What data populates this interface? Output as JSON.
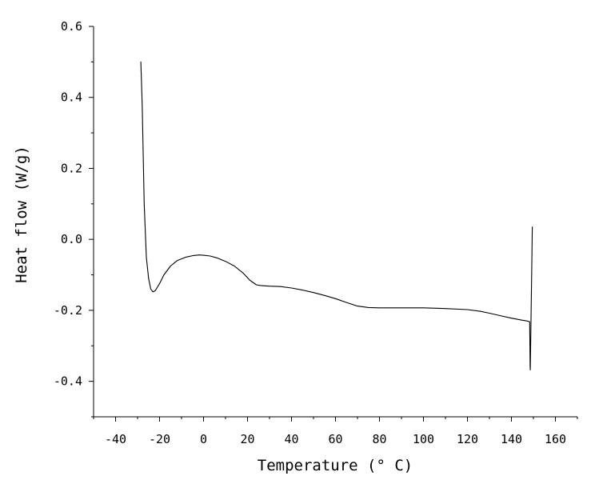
{
  "chart_data": {
    "type": "line",
    "title": "",
    "xlabel": "Temperature (° C)",
    "ylabel": "Heat flow (W/g)",
    "xlim": [
      -50,
      170
    ],
    "ylim": [
      -0.5,
      0.6
    ],
    "x_ticks": [
      -40,
      -20,
      0,
      20,
      40,
      60,
      80,
      100,
      120,
      140,
      160
    ],
    "x_tick_labels": [
      "-40",
      "-20",
      "0",
      "20",
      "40",
      "60",
      "80",
      "100",
      "120",
      "140",
      "160"
    ],
    "y_ticks": [
      -0.4,
      -0.2,
      0.0,
      0.2,
      0.4,
      0.6
    ],
    "y_tick_labels": [
      "-0.4",
      "-0.2",
      "0.0",
      "0.2",
      "0.4",
      "0.6"
    ],
    "grid": false,
    "legend": "none",
    "line_color": "#000000",
    "series": [
      {
        "x": [
          -28.5,
          -27.9,
          -27.0,
          -26.0,
          -25.0,
          -24.0,
          -23.0,
          -22.0,
          -20.0,
          -18.0,
          -15.0,
          -12.0,
          -8.0,
          -5.0,
          -2.0,
          0.0,
          3.0,
          6.0,
          10.0,
          14.0,
          18.0,
          21.0,
          24.0,
          26.0,
          30.0,
          35.0,
          40.0,
          45.0,
          50.0,
          55.0,
          60.0,
          65.0,
          70.0,
          75.0,
          80.0,
          90.0,
          100.0,
          110.0,
          120.0,
          126.0,
          130.0,
          135.0,
          140.0,
          145.0,
          147.0,
          148.3,
          148.5,
          148.6,
          149.3,
          149.5
        ],
        "y": [
          0.5,
          0.38,
          0.1,
          -0.05,
          -0.11,
          -0.14,
          -0.148,
          -0.145,
          -0.125,
          -0.1,
          -0.075,
          -0.06,
          -0.05,
          -0.046,
          -0.044,
          -0.045,
          -0.047,
          -0.052,
          -0.062,
          -0.075,
          -0.095,
          -0.115,
          -0.128,
          -0.13,
          -0.132,
          -0.133,
          -0.137,
          -0.143,
          -0.15,
          -0.158,
          -0.167,
          -0.178,
          -0.188,
          -0.192,
          -0.193,
          -0.193,
          -0.193,
          -0.195,
          -0.198,
          -0.203,
          -0.208,
          -0.215,
          -0.222,
          -0.228,
          -0.23,
          -0.232,
          -0.36,
          -0.368,
          -0.05,
          0.035
        ]
      }
    ]
  }
}
